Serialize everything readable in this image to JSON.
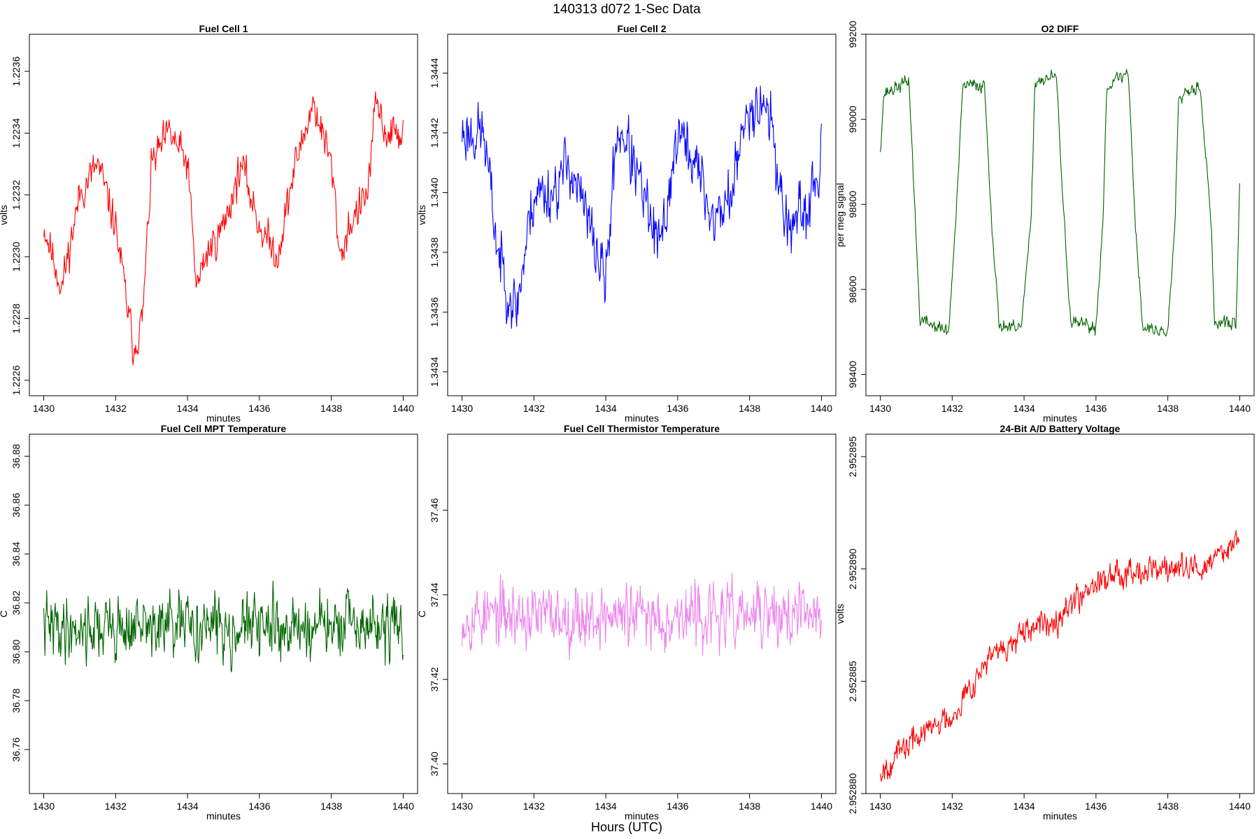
{
  "figure": {
    "title": "140313   d072   1-Sec Data",
    "bottom_label": "Hours (UTC)"
  },
  "chart_data": [
    {
      "type": "line",
      "title": "Fuel Cell 1",
      "xlabel": "minutes",
      "ylabel": "volts",
      "color": "#ff0000",
      "xlim": [
        1429.6,
        1440.4
      ],
      "ylim": [
        1.22255,
        1.22372
      ],
      "xticks": [
        1430,
        1432,
        1434,
        1436,
        1438,
        1440
      ],
      "yticks": [
        1.2226,
        1.2228,
        1.223,
        1.2232,
        1.2234,
        1.2236
      ],
      "ytick_labels": [
        "1.2226",
        "1.2228",
        "1.2230",
        "1.2232",
        "1.2234",
        "1.2236"
      ],
      "x": [
        1430.0,
        1430.5,
        1431.0,
        1431.5,
        1432.0,
        1432.25,
        1432.5,
        1432.75,
        1433.0,
        1433.5,
        1434.0,
        1434.25,
        1434.5,
        1435.0,
        1435.5,
        1436.0,
        1436.5,
        1437.0,
        1437.5,
        1438.0,
        1438.25,
        1438.5,
        1439.0,
        1439.25,
        1439.5,
        1440.0
      ],
      "values": [
        1.2231,
        1.2229,
        1.2232,
        1.2233,
        1.2231,
        1.2229,
        1.2227,
        1.2228,
        1.2233,
        1.2234,
        1.2233,
        1.2229,
        1.223,
        1.2231,
        1.2233,
        1.2231,
        1.223,
        1.2233,
        1.2235,
        1.2233,
        1.223,
        1.2231,
        1.2232,
        1.2235,
        1.2234,
        1.2234
      ],
      "noise": 0.00013,
      "points": 560,
      "seed": 11
    },
    {
      "type": "line",
      "title": "Fuel Cell 2",
      "xlabel": "minutes",
      "ylabel": "volts",
      "color": "#0000ff",
      "xlim": [
        1429.6,
        1440.4
      ],
      "ylim": [
        1.34332,
        1.34453
      ],
      "xticks": [
        1430,
        1432,
        1434,
        1436,
        1438,
        1440
      ],
      "yticks": [
        1.3434,
        1.3436,
        1.3438,
        1.344,
        1.3442,
        1.3444
      ],
      "ytick_labels": [
        "1.3434",
        "1.3436",
        "1.3438",
        "1.3440",
        "1.3442",
        "1.3444"
      ],
      "x": [
        1430.0,
        1430.6,
        1431.0,
        1431.5,
        1432.0,
        1432.5,
        1433.0,
        1433.5,
        1434.0,
        1434.3,
        1434.5,
        1435.0,
        1435.5,
        1436.0,
        1436.5,
        1437.0,
        1437.5,
        1438.0,
        1438.5,
        1439.0,
        1439.5,
        1440.0
      ],
      "values": [
        1.3442,
        1.3442,
        1.3438,
        1.3436,
        1.344,
        1.344,
        1.3441,
        1.3439,
        1.3437,
        1.3442,
        1.3442,
        1.344,
        1.3438,
        1.3442,
        1.3441,
        1.3439,
        1.344,
        1.3443,
        1.3443,
        1.3439,
        1.3439,
        1.3441
      ],
      "noise": 0.00022,
      "points": 560,
      "seed": 23
    },
    {
      "type": "line",
      "title": "O2 DIFF",
      "xlabel": "minutes",
      "ylabel": "per meg signal",
      "color": "#006400",
      "xlim": [
        1429.6,
        1440.4
      ],
      "ylim": [
        98350,
        99200
      ],
      "xticks": [
        1430,
        1432,
        1434,
        1436,
        1438,
        1440
      ],
      "yticks": [
        98400,
        98600,
        98800,
        99000,
        99200
      ],
      "ytick_labels": [
        "98400",
        "98600",
        "98800",
        "99000",
        "99200"
      ],
      "x": [
        1430.0,
        1430.1,
        1430.8,
        1431.1,
        1431.9,
        1432.1,
        1432.3,
        1432.9,
        1433.1,
        1433.3,
        1433.9,
        1434.2,
        1434.3,
        1434.9,
        1435.1,
        1435.3,
        1436.0,
        1436.2,
        1436.3,
        1436.9,
        1437.1,
        1437.3,
        1438.0,
        1438.2,
        1438.3,
        1438.9,
        1439.2,
        1439.3,
        1439.9,
        1440.0
      ],
      "values": [
        98930,
        99060,
        99090,
        98530,
        98500,
        98760,
        99080,
        99080,
        98760,
        98520,
        98500,
        98760,
        99090,
        99100,
        98780,
        98520,
        98510,
        98770,
        99080,
        99110,
        98750,
        98510,
        98500,
        98760,
        99060,
        99080,
        98760,
        98520,
        98520,
        98850
      ],
      "noise": 35,
      "points": 560,
      "seed": 37
    },
    {
      "type": "line",
      "title": "Fuel Cell MPT Temperature",
      "xlabel": "minutes",
      "ylabel": "C",
      "color": "#006400",
      "xlim": [
        1429.6,
        1440.4
      ],
      "ylim": [
        36.742,
        36.889
      ],
      "xticks": [
        1430,
        1432,
        1434,
        1436,
        1438,
        1440
      ],
      "yticks": [
        36.76,
        36.78,
        36.8,
        36.82,
        36.84,
        36.86,
        36.88
      ],
      "ytick_labels": [
        "36.76",
        "36.78",
        "36.80",
        "36.82",
        "36.84",
        "36.86",
        "36.88"
      ],
      "x": [
        1430.0,
        1440.0
      ],
      "values": [
        36.81,
        36.81
      ],
      "noise": 0.028,
      "points": 600,
      "seed": 41
    },
    {
      "type": "line",
      "title": "Fuel Cell Thermistor Temperature",
      "xlabel": "minutes",
      "ylabel": "C",
      "color": "#ee82ee",
      "xlim": [
        1429.6,
        1440.4
      ],
      "ylim": [
        37.393,
        37.478
      ],
      "xticks": [
        1430,
        1432,
        1434,
        1436,
        1438,
        1440
      ],
      "yticks": [
        37.4,
        37.42,
        37.44,
        37.46
      ],
      "ytick_labels": [
        "37.40",
        "37.42",
        "37.44",
        "37.46"
      ],
      "x": [
        1430.0,
        1440.0
      ],
      "values": [
        37.435,
        37.435
      ],
      "noise": 0.016,
      "points": 600,
      "seed": 53
    },
    {
      "type": "line",
      "title": "24-Bit A/D Battery Voltage",
      "xlabel": "minutes",
      "ylabel": "volts",
      "color": "#ff0000",
      "xlim": [
        1429.6,
        1440.4
      ],
      "ylim": [
        2.95288,
        2.952896
      ],
      "xticks": [
        1430,
        1432,
        1434,
        1436,
        1438,
        1440
      ],
      "yticks": [
        2.95288,
        2.952885,
        2.95289,
        2.952895
      ],
      "ytick_labels": [
        "2.952880",
        "2.952885",
        "2.952890",
        "2.952895"
      ],
      "x": [
        1430.0,
        1431.0,
        1432.0,
        1433.0,
        1434.0,
        1435.0,
        1436.0,
        1437.0,
        1438.0,
        1439.0,
        1440.0
      ],
      "values": [
        2.952881,
        2.9528825,
        2.9528835,
        2.952886,
        2.952887,
        2.952888,
        2.9528895,
        2.95289,
        2.95289,
        2.95289,
        2.9528915
      ],
      "noise": 1.3e-06,
      "points": 600,
      "seed": 67
    }
  ]
}
